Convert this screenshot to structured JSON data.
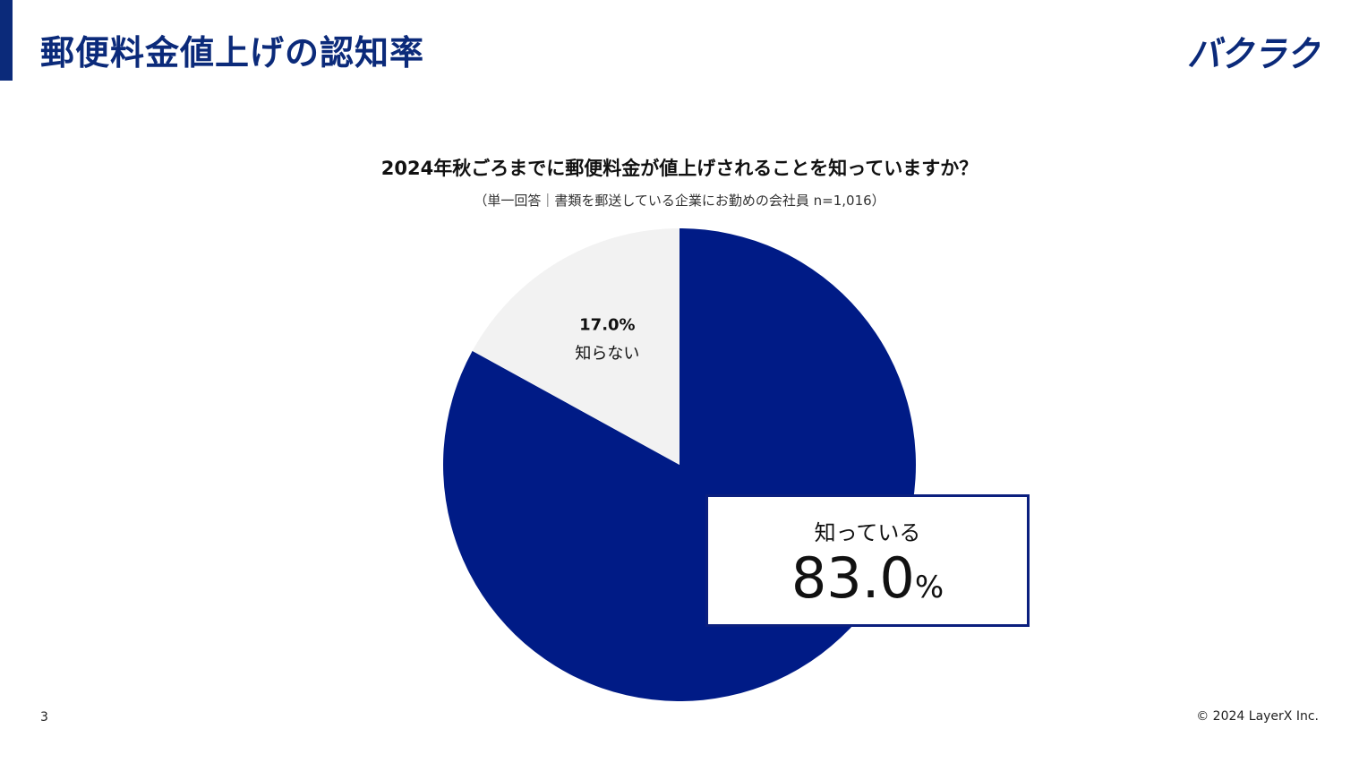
{
  "header": {
    "title": "郵便料金値上げの認知率",
    "logo_text": "バクラク",
    "accent_color": "#0b2a7a"
  },
  "chart_data": {
    "type": "pie",
    "title": "2024年秋ごろまでに郵便料金が値上げされることを知っていますか？",
    "subtitle": "（単一回答｜書類を郵送している企業にお勤めの会社員 n=1,016）",
    "slices": [
      {
        "name": "知っている",
        "value": 83.0,
        "label": "83.0",
        "color": "#001b86"
      },
      {
        "name": "知らない",
        "value": 17.0,
        "label": "17.0%",
        "color": "#f2f2f2"
      }
    ],
    "start": "12 o'clock",
    "direction": "clockwise"
  },
  "callout": {
    "label": "知っている",
    "value": "83.0",
    "unit": "%"
  },
  "footer": {
    "page_number": "3",
    "copyright": "© 2024 LayerX Inc."
  }
}
